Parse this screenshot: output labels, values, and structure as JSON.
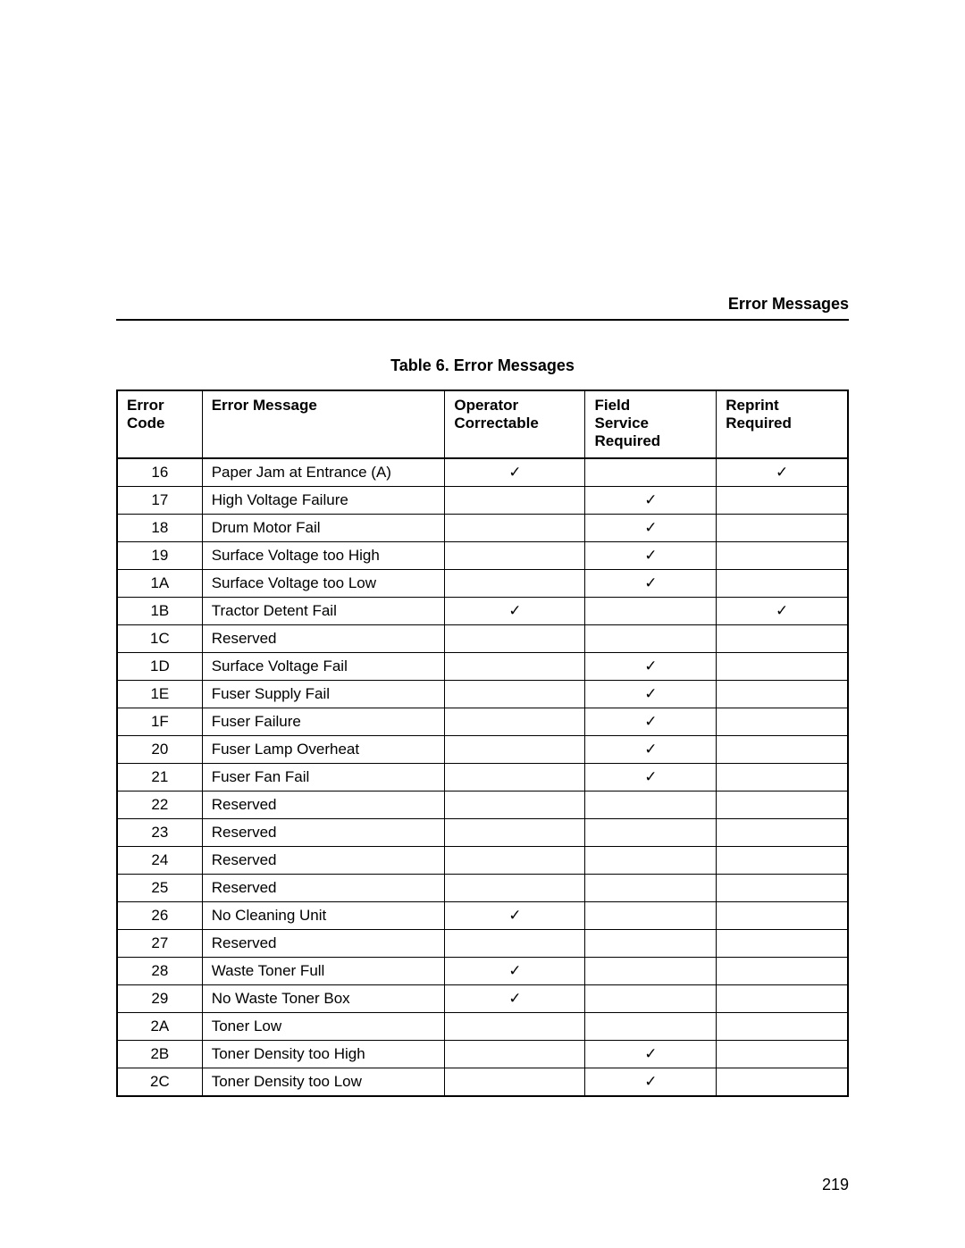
{
  "section_header": "Error Messages",
  "table_caption": "Table 6. Error Messages",
  "page_number": "219",
  "checkmark": "✓",
  "columns": [
    "Error\nCode",
    "Error Message",
    "Operator\nCorrectable",
    "Field\nService\nRequired",
    "Reprint\nRequired"
  ],
  "rows": [
    {
      "code": "16",
      "msg": "Paper Jam at Entrance (A)",
      "op": true,
      "fs": false,
      "rp": true
    },
    {
      "code": "17",
      "msg": "High Voltage Failure",
      "op": false,
      "fs": true,
      "rp": false
    },
    {
      "code": "18",
      "msg": "Drum Motor Fail",
      "op": false,
      "fs": true,
      "rp": false
    },
    {
      "code": "19",
      "msg": "Surface Voltage too High",
      "op": false,
      "fs": true,
      "rp": false
    },
    {
      "code": "1A",
      "msg": "Surface Voltage too Low",
      "op": false,
      "fs": true,
      "rp": false
    },
    {
      "code": "1B",
      "msg": "Tractor Detent Fail",
      "op": true,
      "fs": false,
      "rp": true
    },
    {
      "code": "1C",
      "msg": "Reserved",
      "op": false,
      "fs": false,
      "rp": false
    },
    {
      "code": "1D",
      "msg": "Surface Voltage Fail",
      "op": false,
      "fs": true,
      "rp": false
    },
    {
      "code": "1E",
      "msg": "Fuser Supply Fail",
      "op": false,
      "fs": true,
      "rp": false
    },
    {
      "code": "1F",
      "msg": "Fuser Failure",
      "op": false,
      "fs": true,
      "rp": false
    },
    {
      "code": "20",
      "msg": "Fuser Lamp Overheat",
      "op": false,
      "fs": true,
      "rp": false
    },
    {
      "code": "21",
      "msg": "Fuser Fan Fail",
      "op": false,
      "fs": true,
      "rp": false
    },
    {
      "code": "22",
      "msg": "Reserved",
      "op": false,
      "fs": false,
      "rp": false
    },
    {
      "code": "23",
      "msg": "Reserved",
      "op": false,
      "fs": false,
      "rp": false
    },
    {
      "code": "24",
      "msg": "Reserved",
      "op": false,
      "fs": false,
      "rp": false
    },
    {
      "code": "25",
      "msg": "Reserved",
      "op": false,
      "fs": false,
      "rp": false
    },
    {
      "code": "26",
      "msg": "No Cleaning Unit",
      "op": true,
      "fs": false,
      "rp": false
    },
    {
      "code": "27",
      "msg": "Reserved",
      "op": false,
      "fs": false,
      "rp": false
    },
    {
      "code": "28",
      "msg": "Waste Toner Full",
      "op": true,
      "fs": false,
      "rp": false
    },
    {
      "code": "29",
      "msg": "No Waste Toner Box",
      "op": true,
      "fs": false,
      "rp": false
    },
    {
      "code": "2A",
      "msg": "Toner Low",
      "op": false,
      "fs": false,
      "rp": false
    },
    {
      "code": "2B",
      "msg": "Toner Density too High",
      "op": false,
      "fs": true,
      "rp": false
    },
    {
      "code": "2C",
      "msg": "Toner Density too Low",
      "op": false,
      "fs": true,
      "rp": false
    }
  ]
}
